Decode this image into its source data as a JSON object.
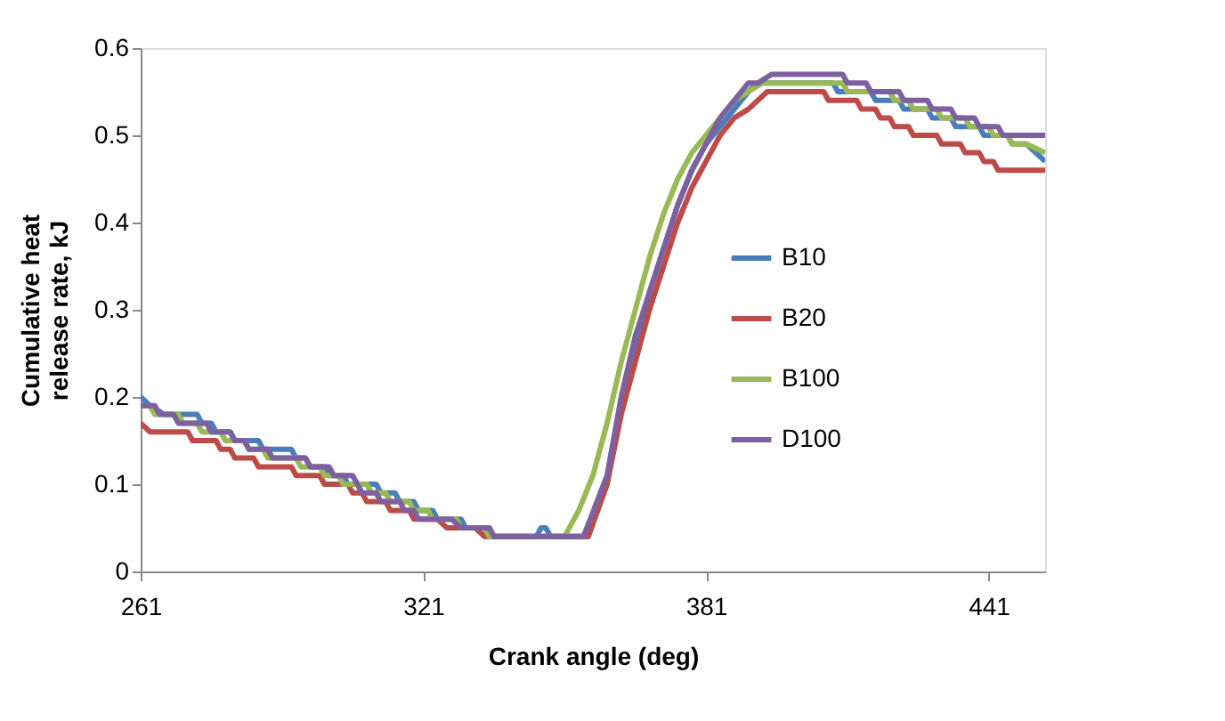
{
  "chart_data": {
    "type": "line",
    "xlabel": "Crank angle (deg)",
    "ylabel": "Cumulative heat release rate, kJ",
    "xlim": [
      261,
      453
    ],
    "xticks": [
      261,
      321,
      381,
      441
    ],
    "ylim": [
      0,
      0.6
    ],
    "yticks": [
      0,
      0.1,
      0.2,
      0.3,
      0.4,
      0.5,
      0.6
    ],
    "grid": false,
    "legend": "right",
    "marker": "none",
    "line_style": "solid",
    "series": [
      {
        "name": "B10",
        "color": "#4a7ebb",
        "x": [
          261,
          263,
          266,
          273,
          274,
          276,
          277,
          280,
          281,
          286,
          287,
          293,
          294,
          296,
          297,
          300,
          301,
          304,
          305,
          311,
          312,
          315,
          316,
          319,
          320,
          323,
          324,
          329,
          330,
          335,
          336,
          345,
          346,
          347,
          348,
          356,
          360,
          363,
          366,
          369,
          372,
          375,
          378,
          381,
          384,
          387,
          390,
          392,
          408,
          409,
          416,
          417,
          422,
          423,
          428,
          429,
          433,
          434,
          439,
          440,
          445,
          446,
          449,
          453
        ],
        "values": [
          0.2,
          0.19,
          0.18,
          0.18,
          0.17,
          0.17,
          0.16,
          0.16,
          0.15,
          0.15,
          0.14,
          0.14,
          0.13,
          0.13,
          0.12,
          0.12,
          0.11,
          0.11,
          0.1,
          0.1,
          0.09,
          0.09,
          0.08,
          0.08,
          0.07,
          0.07,
          0.06,
          0.06,
          0.05,
          0.05,
          0.04,
          0.04,
          0.05,
          0.05,
          0.04,
          0.04,
          0.1,
          0.19,
          0.26,
          0.32,
          0.37,
          0.42,
          0.46,
          0.49,
          0.51,
          0.53,
          0.55,
          0.56,
          0.56,
          0.55,
          0.55,
          0.54,
          0.54,
          0.53,
          0.53,
          0.52,
          0.52,
          0.51,
          0.51,
          0.5,
          0.5,
          0.49,
          0.49,
          0.47
        ]
      },
      {
        "name": "B20",
        "color": "#be4b48",
        "x": [
          261,
          263,
          271,
          272,
          277,
          278,
          280,
          281,
          285,
          286,
          293,
          294,
          299,
          300,
          305,
          306,
          308,
          309,
          313,
          314,
          318,
          319,
          324,
          326,
          332,
          334,
          356,
          360,
          363,
          366,
          369,
          372,
          375,
          378,
          381,
          384,
          387,
          390,
          394,
          406,
          407,
          413,
          414,
          417,
          418,
          420,
          421,
          424,
          425,
          430,
          431,
          435,
          436,
          439,
          440,
          442,
          443,
          453
        ],
        "values": [
          0.17,
          0.16,
          0.16,
          0.15,
          0.15,
          0.14,
          0.14,
          0.13,
          0.13,
          0.12,
          0.12,
          0.11,
          0.11,
          0.1,
          0.1,
          0.09,
          0.09,
          0.08,
          0.08,
          0.07,
          0.07,
          0.06,
          0.06,
          0.05,
          0.05,
          0.04,
          0.04,
          0.1,
          0.18,
          0.24,
          0.3,
          0.35,
          0.4,
          0.44,
          0.47,
          0.5,
          0.52,
          0.53,
          0.55,
          0.55,
          0.54,
          0.54,
          0.53,
          0.53,
          0.52,
          0.52,
          0.51,
          0.51,
          0.5,
          0.5,
          0.49,
          0.49,
          0.48,
          0.48,
          0.47,
          0.47,
          0.46,
          0.46
        ]
      },
      {
        "name": "B100",
        "color": "#98b954",
        "x": [
          261,
          263,
          264,
          269,
          270,
          273,
          274,
          278,
          279,
          283,
          284,
          287,
          288,
          294,
          295,
          299,
          300,
          303,
          304,
          309,
          310,
          313,
          314,
          318,
          319,
          322,
          323,
          328,
          329,
          334,
          335,
          351,
          354,
          357,
          360,
          363,
          366,
          369,
          372,
          375,
          378,
          381,
          384,
          387,
          390,
          393,
          396,
          400,
          410,
          411,
          420,
          421,
          424,
          425,
          430,
          431,
          436,
          437,
          441,
          442,
          445,
          446,
          449,
          453
        ],
        "values": [
          0.19,
          0.19,
          0.18,
          0.18,
          0.17,
          0.17,
          0.16,
          0.16,
          0.15,
          0.15,
          0.14,
          0.14,
          0.13,
          0.13,
          0.12,
          0.12,
          0.11,
          0.11,
          0.1,
          0.1,
          0.09,
          0.09,
          0.08,
          0.08,
          0.07,
          0.07,
          0.06,
          0.06,
          0.05,
          0.05,
          0.04,
          0.04,
          0.07,
          0.11,
          0.17,
          0.24,
          0.3,
          0.36,
          0.41,
          0.45,
          0.48,
          0.5,
          0.52,
          0.54,
          0.55,
          0.56,
          0.56,
          0.56,
          0.56,
          0.55,
          0.55,
          0.54,
          0.54,
          0.53,
          0.53,
          0.52,
          0.52,
          0.51,
          0.51,
          0.5,
          0.5,
          0.49,
          0.49,
          0.48
        ]
      },
      {
        "name": "D100",
        "color": "#7d60a0",
        "x": [
          261,
          264,
          265,
          268,
          269,
          275,
          276,
          280,
          281,
          283,
          284,
          288,
          289,
          296,
          297,
          301,
          302,
          306,
          308,
          311,
          312,
          316,
          317,
          319,
          320,
          327,
          329,
          335,
          336,
          355,
          360,
          363,
          366,
          369,
          372,
          375,
          378,
          381,
          384,
          387,
          390,
          392,
          395,
          410,
          411,
          415,
          416,
          422,
          423,
          428,
          429,
          433,
          434,
          438,
          439,
          443,
          444,
          453
        ],
        "values": [
          0.19,
          0.19,
          0.18,
          0.18,
          0.17,
          0.17,
          0.16,
          0.16,
          0.15,
          0.15,
          0.14,
          0.14,
          0.13,
          0.13,
          0.12,
          0.12,
          0.11,
          0.11,
          0.09,
          0.09,
          0.08,
          0.08,
          0.07,
          0.07,
          0.06,
          0.06,
          0.05,
          0.05,
          0.04,
          0.04,
          0.11,
          0.2,
          0.27,
          0.32,
          0.37,
          0.42,
          0.46,
          0.49,
          0.52,
          0.54,
          0.56,
          0.56,
          0.57,
          0.57,
          0.56,
          0.56,
          0.55,
          0.55,
          0.54,
          0.54,
          0.53,
          0.53,
          0.52,
          0.52,
          0.51,
          0.51,
          0.5,
          0.5
        ]
      }
    ]
  }
}
